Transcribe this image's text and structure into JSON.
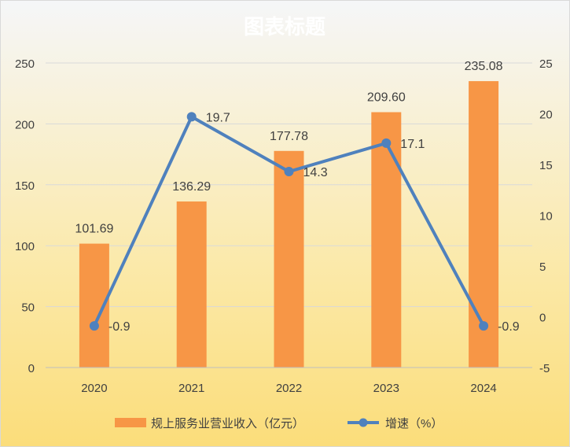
{
  "chart_data": {
    "type": "bar+line",
    "title": "图表标题",
    "categories": [
      "2020",
      "2021",
      "2022",
      "2023",
      "2024"
    ],
    "series": [
      {
        "name": "规上服务业营业收入（亿元）",
        "type": "bar",
        "axis": "left",
        "values": [
          101.69,
          136.29,
          177.78,
          209.6,
          235.08
        ],
        "labels": [
          "101.69",
          "136.29",
          "177.78",
          "209.60",
          "235.08"
        ]
      },
      {
        "name": "增速（%）",
        "type": "line",
        "axis": "right",
        "values": [
          -0.9,
          19.7,
          14.3,
          17.1,
          -0.9
        ],
        "labels": [
          "-0.9",
          "19.7",
          "14.3",
          "17.1",
          "-0.9"
        ]
      }
    ],
    "y_left": {
      "min": 0,
      "max": 250,
      "ticks": [
        "0",
        "50",
        "100",
        "150",
        "200",
        "250"
      ]
    },
    "y_right": {
      "min": -5,
      "max": 25,
      "ticks": [
        "-5",
        "0",
        "5",
        "10",
        "15",
        "20",
        "25"
      ]
    },
    "grid": true,
    "legend": "bottom"
  },
  "colors": {
    "bar": "#f79646",
    "line": "#4f81bd",
    "grid": "#d9d9d9",
    "text": "#404040",
    "title": "#ffffff"
  }
}
